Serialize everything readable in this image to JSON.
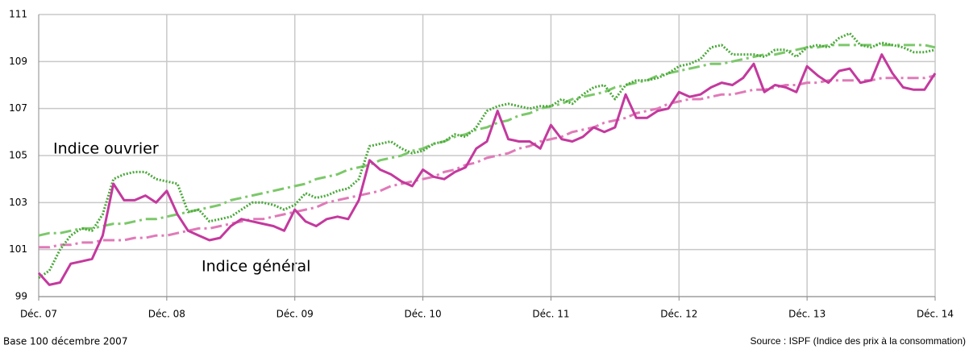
{
  "chart_data": {
    "type": "line",
    "categories": [
      "Déc. 07",
      null,
      null,
      null,
      null,
      null,
      null,
      null,
      null,
      null,
      null,
      null,
      "Déc. 08",
      null,
      null,
      null,
      null,
      null,
      null,
      null,
      null,
      null,
      null,
      null,
      "Déc. 09",
      null,
      null,
      null,
      null,
      null,
      null,
      null,
      null,
      null,
      null,
      null,
      "Déc. 10",
      null,
      null,
      null,
      null,
      null,
      null,
      null,
      null,
      null,
      null,
      null,
      "Déc. 11",
      null,
      null,
      null,
      null,
      null,
      null,
      null,
      null,
      null,
      null,
      null,
      "Déc. 12",
      null,
      null,
      null,
      null,
      null,
      null,
      null,
      null,
      null,
      null,
      null,
      "Déc. 13",
      null,
      null,
      null,
      null,
      null,
      null,
      null,
      null,
      null,
      null,
      null,
      "Déc. 14"
    ],
    "series": [
      {
        "color": "#7cc86a",
        "style": "dashdot",
        "values": [
          101.6,
          101.7,
          101.7,
          101.8,
          101.9,
          101.9,
          102.0,
          102.1,
          102.1,
          102.2,
          102.3,
          102.3,
          102.4,
          102.5,
          102.6,
          102.7,
          102.8,
          102.9,
          103.1,
          103.2,
          103.3,
          103.4,
          103.5,
          103.6,
          103.7,
          103.8,
          104.0,
          104.1,
          104.2,
          104.4,
          104.5,
          104.6,
          104.8,
          104.9,
          105.0,
          105.2,
          105.3,
          105.5,
          105.6,
          105.8,
          105.9,
          106.1,
          106.2,
          106.4,
          106.5,
          106.7,
          106.8,
          107.0,
          107.1,
          107.2,
          107.4,
          107.5,
          107.6,
          107.7,
          107.9,
          108.0,
          108.1,
          108.2,
          108.4,
          108.5,
          108.6,
          108.7,
          108.8,
          108.9,
          108.9,
          109.0,
          109.1,
          109.2,
          109.3,
          109.3,
          109.4,
          109.5,
          109.6,
          109.6,
          109.7,
          109.7,
          109.7,
          109.7,
          109.7,
          109.7,
          109.7,
          109.7,
          109.7,
          109.7,
          109.6
        ]
      },
      {
        "color": "#e07ab8",
        "style": "dashdot",
        "values": [
          101.1,
          101.1,
          101.2,
          101.2,
          101.3,
          101.3,
          101.4,
          101.4,
          101.4,
          101.5,
          101.5,
          101.6,
          101.6,
          101.7,
          101.8,
          101.9,
          101.9,
          102.0,
          102.1,
          102.2,
          102.3,
          102.3,
          102.4,
          102.5,
          102.6,
          102.7,
          102.8,
          103.0,
          103.1,
          103.2,
          103.3,
          103.4,
          103.5,
          103.7,
          103.8,
          103.9,
          104.0,
          104.1,
          104.3,
          104.4,
          104.6,
          104.7,
          104.9,
          105.0,
          105.1,
          105.3,
          105.4,
          105.6,
          105.7,
          105.8,
          106.0,
          106.1,
          106.2,
          106.4,
          106.5,
          106.6,
          106.8,
          106.9,
          107.0,
          107.2,
          107.3,
          107.4,
          107.4,
          107.5,
          107.6,
          107.6,
          107.7,
          107.8,
          107.8,
          107.9,
          108.0,
          108.0,
          108.1,
          108.1,
          108.2,
          108.2,
          108.2,
          108.2,
          108.2,
          108.3,
          108.3,
          108.3,
          108.3,
          108.3,
          108.4
        ]
      },
      {
        "color": "#4aa83a",
        "style": "dotted",
        "values": [
          99.8,
          100.1,
          101.0,
          101.6,
          101.9,
          101.8,
          102.5,
          104.0,
          104.2,
          104.3,
          104.3,
          104.0,
          103.9,
          103.8,
          102.6,
          102.7,
          102.2,
          102.3,
          102.4,
          102.7,
          103.0,
          103.0,
          102.9,
          102.7,
          102.9,
          103.4,
          103.2,
          103.3,
          103.5,
          103.6,
          104.0,
          105.4,
          105.5,
          105.6,
          105.3,
          105.1,
          105.2,
          105.5,
          105.6,
          105.9,
          105.8,
          106.2,
          106.9,
          107.1,
          107.2,
          107.1,
          107.0,
          107.1,
          107.1,
          107.4,
          107.2,
          107.6,
          107.9,
          108.0,
          107.4,
          108.0,
          108.2,
          108.2,
          108.3,
          108.5,
          108.8,
          108.9,
          109.1,
          109.6,
          109.7,
          109.3,
          109.3,
          109.3,
          109.2,
          109.5,
          109.5,
          109.2,
          109.6,
          109.7,
          109.6,
          110.0,
          110.2,
          109.7,
          109.6,
          109.8,
          109.7,
          109.6,
          109.4,
          109.4,
          109.5
        ]
      },
      {
        "color": "#c4399e",
        "style": "solid",
        "values": [
          100.0,
          99.5,
          99.6,
          100.4,
          100.5,
          100.6,
          101.6,
          103.8,
          103.1,
          103.1,
          103.3,
          103.0,
          103.5,
          102.5,
          101.8,
          101.6,
          101.4,
          101.5,
          102.0,
          102.3,
          102.2,
          102.1,
          102.0,
          101.8,
          102.7,
          102.2,
          102.0,
          102.3,
          102.4,
          102.3,
          103.1,
          104.8,
          104.4,
          104.2,
          103.9,
          103.7,
          104.4,
          104.1,
          104.0,
          104.3,
          104.5,
          105.3,
          105.6,
          106.9,
          105.7,
          105.6,
          105.6,
          105.3,
          106.3,
          105.7,
          105.6,
          105.8,
          106.2,
          106.0,
          106.2,
          107.6,
          106.6,
          106.6,
          106.9,
          107.0,
          107.7,
          107.5,
          107.6,
          107.9,
          108.1,
          108.0,
          108.3,
          108.9,
          107.7,
          108.0,
          107.9,
          107.7,
          108.8,
          108.4,
          108.1,
          108.6,
          108.7,
          108.1,
          108.2,
          109.3,
          108.5,
          107.9,
          107.8,
          107.8,
          108.5
        ]
      }
    ],
    "annotations": [
      "Indice ouvrier",
      "Indice général"
    ],
    "footnote": "Base 100 décembre 2007",
    "source": "Source : ISPF (Indice des prix à la consommation)",
    "ylim": [
      99,
      111
    ],
    "yticks": [
      99,
      101,
      103,
      105,
      107,
      109,
      111
    ],
    "grid": true
  }
}
